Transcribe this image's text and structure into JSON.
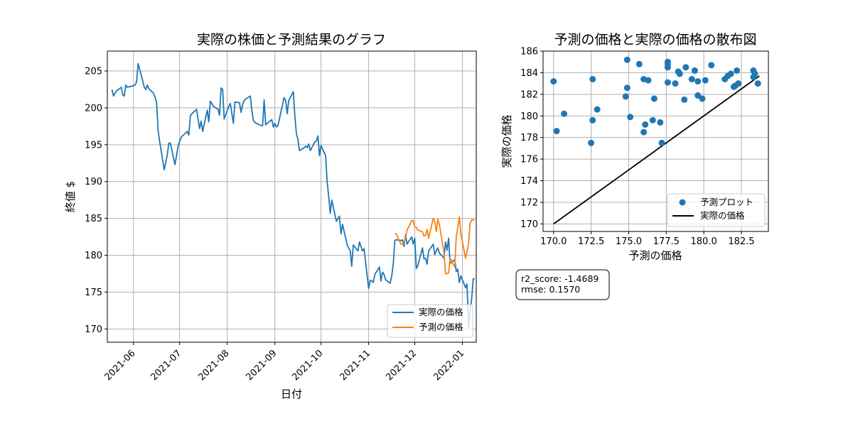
{
  "chart_data": [
    {
      "type": "line",
      "title": "実際の株価と予測結果のグラフ",
      "xlabel": "日付",
      "ylabel": "終値 $",
      "xlim": [
        "2021-05-15",
        "2022-01-10"
      ],
      "ylim": [
        168.2,
        207.7
      ],
      "xticks": [
        "2021-06",
        "2021-07",
        "2021-08",
        "2021-09",
        "2021-10",
        "2021-11",
        "2021-12",
        "2022-01"
      ],
      "yticks": [
        170,
        175,
        180,
        185,
        190,
        195,
        200,
        205
      ],
      "grid": true,
      "legend_position": "lower-right",
      "colors": {
        "actual": "#1f77b4",
        "predicted": "#ff7f0e"
      },
      "series": [
        {
          "name": "実際の価格",
          "points": [
            [
              "2021-05-18",
              202.5
            ],
            [
              "2021-05-19",
              201.6
            ],
            [
              "2021-05-20",
              202.0
            ],
            [
              "2021-05-21",
              202.3
            ],
            [
              "2021-05-24",
              202.8
            ],
            [
              "2021-05-25",
              201.8
            ],
            [
              "2021-05-26",
              201.6
            ],
            [
              "2021-05-27",
              203.1
            ],
            [
              "2021-05-28",
              202.8
            ],
            [
              "2021-06-01",
              203.0
            ],
            [
              "2021-06-02",
              203.1
            ],
            [
              "2021-06-03",
              203.5
            ],
            [
              "2021-06-04",
              206.0
            ],
            [
              "2021-06-07",
              203.7
            ],
            [
              "2021-06-08",
              202.8
            ],
            [
              "2021-06-09",
              202.5
            ],
            [
              "2021-06-10",
              203.1
            ],
            [
              "2021-06-11",
              202.6
            ],
            [
              "2021-06-14",
              202.0
            ],
            [
              "2021-06-15",
              201.5
            ],
            [
              "2021-06-16",
              200.8
            ],
            [
              "2021-06-17",
              197.0
            ],
            [
              "2021-06-18",
              195.5
            ],
            [
              "2021-06-21",
              191.6
            ],
            [
              "2021-06-22",
              192.6
            ],
            [
              "2021-06-23",
              193.6
            ],
            [
              "2021-06-24",
              195.2
            ],
            [
              "2021-06-25",
              195.2
            ],
            [
              "2021-06-28",
              192.3
            ],
            [
              "2021-06-29",
              193.5
            ],
            [
              "2021-06-30",
              194.8
            ],
            [
              "2021-07-01",
              195.4
            ],
            [
              "2021-07-02",
              196.0
            ],
            [
              "2021-07-06",
              196.8
            ],
            [
              "2021-07-07",
              196.3
            ],
            [
              "2021-07-08",
              198.9
            ],
            [
              "2021-07-09",
              199.2
            ],
            [
              "2021-07-12",
              199.8
            ],
            [
              "2021-07-13",
              198.5
            ],
            [
              "2021-07-14",
              197.2
            ],
            [
              "2021-07-15",
              198.2
            ],
            [
              "2021-07-16",
              196.8
            ],
            [
              "2021-07-19",
              199.7
            ],
            [
              "2021-07-20",
              198.1
            ],
            [
              "2021-07-21",
              200.9
            ],
            [
              "2021-07-22",
              200.6
            ],
            [
              "2021-07-23",
              200.2
            ],
            [
              "2021-07-26",
              199.8
            ],
            [
              "2021-07-27",
              199.0
            ],
            [
              "2021-07-28",
              202.7
            ],
            [
              "2021-07-29",
              202.5
            ],
            [
              "2021-07-30",
              198.5
            ],
            [
              "2021-08-02",
              200.2
            ],
            [
              "2021-08-03",
              200.6
            ],
            [
              "2021-08-04",
              199.2
            ],
            [
              "2021-08-05",
              197.9
            ],
            [
              "2021-08-06",
              200.8
            ],
            [
              "2021-08-09",
              200.7
            ],
            [
              "2021-08-10",
              199.4
            ],
            [
              "2021-08-11",
              200.4
            ],
            [
              "2021-08-12",
              201.0
            ],
            [
              "2021-08-13",
              201.2
            ],
            [
              "2021-08-16",
              201.6
            ],
            [
              "2021-08-17",
              199.7
            ],
            [
              "2021-08-18",
              198.3
            ],
            [
              "2021-08-19",
              198.0
            ],
            [
              "2021-08-20",
              197.9
            ],
            [
              "2021-08-23",
              197.6
            ],
            [
              "2021-08-24",
              197.6
            ],
            [
              "2021-08-25",
              201.1
            ],
            [
              "2021-08-26",
              197.7
            ],
            [
              "2021-08-27",
              197.9
            ],
            [
              "2021-08-30",
              198.4
            ],
            [
              "2021-08-31",
              197.4
            ],
            [
              "2021-09-01",
              197.9
            ],
            [
              "2021-09-02",
              197.4
            ],
            [
              "2021-09-03",
              197.6
            ],
            [
              "2021-09-07",
              201.4
            ],
            [
              "2021-09-08",
              201.0
            ],
            [
              "2021-09-09",
              199.2
            ],
            [
              "2021-09-10",
              201.0
            ],
            [
              "2021-09-13",
              202.2
            ],
            [
              "2021-09-14",
              198.9
            ],
            [
              "2021-09-15",
              196.5
            ],
            [
              "2021-09-16",
              195.7
            ],
            [
              "2021-09-17",
              194.2
            ],
            [
              "2021-09-20",
              194.6
            ],
            [
              "2021-09-21",
              194.8
            ],
            [
              "2021-09-22",
              194.6
            ],
            [
              "2021-09-23",
              195.1
            ],
            [
              "2021-09-24",
              194.2
            ],
            [
              "2021-09-27",
              195.4
            ],
            [
              "2021-09-28",
              195.5
            ],
            [
              "2021-09-29",
              196.2
            ],
            [
              "2021-09-30",
              193.5
            ],
            [
              "2021-10-01",
              194.9
            ],
            [
              "2021-10-04",
              193.5
            ],
            [
              "2021-10-05",
              190.0
            ],
            [
              "2021-10-06",
              188.0
            ],
            [
              "2021-10-07",
              185.7
            ],
            [
              "2021-10-08",
              187.5
            ],
            [
              "2021-10-11",
              184.6
            ],
            [
              "2021-10-12",
              185.0
            ],
            [
              "2021-10-13",
              185.3
            ],
            [
              "2021-10-14",
              182.9
            ],
            [
              "2021-10-15",
              184.2
            ],
            [
              "2021-10-18",
              181.4
            ],
            [
              "2021-10-19",
              181.0
            ],
            [
              "2021-10-20",
              180.6
            ],
            [
              "2021-10-21",
              178.5
            ],
            [
              "2021-10-22",
              181.4
            ],
            [
              "2021-10-25",
              180.6
            ],
            [
              "2021-10-26",
              181.8
            ],
            [
              "2021-10-27",
              181.2
            ],
            [
              "2021-10-28",
              180.6
            ],
            [
              "2021-10-29",
              180.9
            ],
            [
              "2021-11-01",
              175.5
            ],
            [
              "2021-11-02",
              176.6
            ],
            [
              "2021-11-03",
              176.5
            ],
            [
              "2021-11-04",
              176.3
            ],
            [
              "2021-11-05",
              177.4
            ],
            [
              "2021-11-08",
              178.4
            ],
            [
              "2021-11-09",
              176.5
            ],
            [
              "2021-11-10",
              177.7
            ],
            [
              "2021-11-11",
              177.4
            ],
            [
              "2021-11-12",
              176.7
            ],
            [
              "2021-11-15",
              176.2
            ],
            [
              "2021-11-16",
              177.2
            ],
            [
              "2021-11-17",
              178.8
            ],
            [
              "2021-11-18",
              182.0
            ],
            [
              "2021-11-19",
              182.1
            ],
            [
              "2021-11-22",
              182.0
            ],
            [
              "2021-11-23",
              182.1
            ],
            [
              "2021-11-24",
              181.2
            ],
            [
              "2021-11-25",
              182.8
            ],
            [
              "2021-11-26",
              181.5
            ],
            [
              "2021-11-29",
              182.5
            ],
            [
              "2021-11-30",
              181.5
            ],
            [
              "2021-12-01",
              182.3
            ],
            [
              "2021-12-02",
              178.2
            ],
            [
              "2021-12-03",
              178.6
            ],
            [
              "2021-12-06",
              181.0
            ],
            [
              "2021-12-07",
              179.5
            ],
            [
              "2021-12-08",
              179.6
            ],
            [
              "2021-12-09",
              178.8
            ],
            [
              "2021-12-10",
              180.6
            ],
            [
              "2021-12-13",
              181.5
            ],
            [
              "2021-12-14",
              180.1
            ],
            [
              "2021-12-15",
              180.6
            ],
            [
              "2021-12-16",
              181.0
            ],
            [
              "2021-12-17",
              180.3
            ],
            [
              "2021-12-20",
              179.6
            ],
            [
              "2021-12-21",
              181.8
            ],
            [
              "2021-12-22",
              180.7
            ],
            [
              "2021-12-23",
              182.3
            ],
            [
              "2021-12-24",
              178.9
            ],
            [
              "2021-12-27",
              179.4
            ],
            [
              "2021-12-28",
              177.8
            ],
            [
              "2021-12-29",
              178.1
            ],
            [
              "2021-12-30",
              176.3
            ],
            [
              "2021-12-31",
              177.2
            ],
            [
              "2022-01-03",
              175.6
            ],
            [
              "2022-01-04",
              176.1
            ],
            [
              "2022-01-05",
              170.2
            ],
            [
              "2022-01-06",
              172.7
            ],
            [
              "2022-01-07",
              174.0
            ],
            [
              "2022-01-08",
              176.8
            ],
            [
              "2022-01-09",
              176.8
            ]
          ]
        },
        {
          "name": "予測の価格",
          "points": []
        }
      ]
    },
    {
      "type": "scatter",
      "title": "予測の価格と実際の価格の散布図",
      "xlabel": "予測の価格",
      "ylabel": "実際の価格",
      "xlim": [
        169.3,
        184.3
      ],
      "ylim": [
        169.3,
        186.0
      ],
      "xticks": [
        "170.0",
        "172.5",
        "175.0",
        "177.5",
        "180.0",
        "182.5"
      ],
      "yticks": [
        "170",
        "172",
        "174",
        "176",
        "178",
        "180",
        "182",
        "184",
        "186"
      ],
      "grid": true,
      "legend_position": "lower-right",
      "colors": {
        "points": "#1f77b4",
        "line": "#000000"
      },
      "series": [
        {
          "name": "予測プロット",
          "points": [
            [
              170.0,
              183.2
            ],
            [
              170.2,
              178.6
            ],
            [
              170.7,
              180.2
            ],
            [
              172.5,
              177.5
            ],
            [
              172.6,
              179.6
            ],
            [
              172.6,
              183.4
            ],
            [
              172.9,
              180.6
            ],
            [
              174.8,
              181.8
            ],
            [
              174.9,
              182.6
            ],
            [
              174.9,
              185.2
            ],
            [
              175.1,
              179.9
            ],
            [
              175.7,
              184.8
            ],
            [
              176.0,
              183.4
            ],
            [
              176.0,
              178.5
            ],
            [
              176.1,
              179.2
            ],
            [
              176.3,
              183.3
            ],
            [
              176.6,
              179.6
            ],
            [
              176.7,
              181.6
            ],
            [
              177.1,
              179.4
            ],
            [
              177.2,
              177.5
            ],
            [
              177.6,
              183.1
            ],
            [
              177.6,
              184.5
            ],
            [
              177.6,
              184.8
            ],
            [
              177.6,
              185.0
            ],
            [
              178.1,
              183.0
            ],
            [
              178.3,
              184.1
            ],
            [
              178.4,
              183.9
            ],
            [
              178.7,
              181.5
            ],
            [
              178.8,
              184.5
            ],
            [
              179.2,
              183.4
            ],
            [
              179.4,
              184.2
            ],
            [
              179.6,
              183.2
            ],
            [
              179.6,
              181.9
            ],
            [
              179.9,
              181.6
            ],
            [
              180.1,
              183.3
            ],
            [
              180.5,
              184.7
            ],
            [
              181.4,
              183.4
            ],
            [
              181.6,
              183.7
            ],
            [
              181.8,
              183.9
            ],
            [
              182.0,
              182.7
            ],
            [
              182.1,
              182.8
            ],
            [
              182.2,
              184.2
            ],
            [
              182.3,
              183.0
            ],
            [
              183.3,
              184.2
            ],
            [
              183.3,
              183.6
            ],
            [
              183.4,
              183.9
            ],
            [
              183.6,
              183.0
            ]
          ]
        },
        {
          "name": "実際の価格",
          "line": [
            [
              170.0,
              170.0
            ],
            [
              183.7,
              183.7
            ]
          ]
        }
      ],
      "annotation": {
        "r2_score": "r2_score: -1.4689",
        "rmse": "rmse: 0.1570"
      }
    }
  ]
}
